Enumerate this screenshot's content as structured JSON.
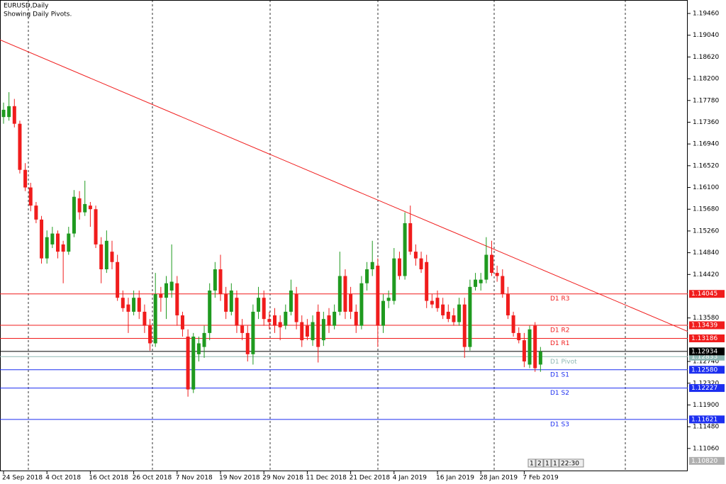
{
  "chart_data": {
    "type": "candlestick",
    "title": "EURUSD,Daily",
    "subtitle": "Showing Daily Pivots.",
    "categories": [
      "24 Sep 2018",
      null,
      null,
      null,
      null,
      null,
      null,
      null,
      "4 Oct 2018",
      null,
      null,
      null,
      null,
      null,
      null,
      null,
      "16 Oct 2018",
      null,
      null,
      null,
      null,
      null,
      null,
      null,
      "26 Oct 2018",
      null,
      null,
      null,
      null,
      null,
      null,
      null,
      "7 Nov 2018",
      null,
      null,
      null,
      null,
      null,
      null,
      null,
      "19 Nov 2018",
      null,
      null,
      null,
      null,
      null,
      null,
      null,
      "29 Nov 2018",
      null,
      null,
      null,
      null,
      null,
      null,
      null,
      "11 Dec 2018",
      null,
      null,
      null,
      null,
      null,
      null,
      null,
      "21 Dec 2018",
      null,
      null,
      null,
      null,
      null,
      null,
      null,
      "4 Jan 2019",
      null,
      null,
      null,
      null,
      null,
      null,
      null,
      "16 Jan 2019",
      null,
      null,
      null,
      null,
      null,
      null,
      null,
      "28 Jan 2019",
      null,
      null,
      null,
      null,
      null,
      null,
      null,
      "7 Feb 2019",
      null,
      null,
      null
    ],
    "open": [
      1.1746,
      1.1746,
      1.1767,
      1.1733,
      1.1644,
      1.161,
      1.1575,
      1.1548,
      1.1473,
      1.15,
      1.1521,
      1.15,
      1.1486,
      1.1521,
      1.1589,
      1.1562,
      1.1575,
      1.1568,
      1.15,
      1.1452,
      1.1486,
      1.1466,
      1.1397,
      1.1384,
      1.137,
      1.1397,
      1.137,
      1.1343,
      1.1309,
      1.1404,
      1.1397,
      1.1411,
      1.1425,
      1.1363,
      1.1322,
      1.122,
      1.1288,
      1.1302,
      1.1329,
      1.1411,
      1.1452,
      1.1404,
      1.137,
      1.1397,
      1.1343,
      1.1329,
      1.1288,
      1.137,
      1.1397,
      1.1356,
      1.1363,
      1.135,
      1.1343,
      1.137,
      1.1404,
      1.135,
      1.1343,
      1.1315,
      1.137,
      1.1315,
      1.1363,
      1.1343,
      1.137,
      1.1439,
      1.1404,
      1.137,
      1.1343,
      1.1425,
      1.1452,
      1.1459,
      1.1343,
      1.1391,
      1.1391,
      1.1473,
      1.1439,
      1.1541,
      1.1486,
      1.1473,
      1.1466,
      1.1391,
      1.1397,
      1.1384,
      1.137,
      1.1363,
      1.135,
      1.1384,
      1.1302,
      1.1418,
      1.1425,
      1.1432,
      1.148,
      1.1445,
      1.1439,
      1.1404,
      1.1363,
      1.1329,
      1.1315,
      1.1268,
      1.1343,
      1.1268
    ],
    "high": [
      1.1774,
      1.1794,
      1.1781,
      1.1739,
      1.1657,
      1.1619,
      1.1582,
      1.1555,
      1.1527,
      1.1534,
      1.1527,
      1.1507,
      1.1534,
      1.1605,
      1.1603,
      1.1623,
      1.1582,
      1.1575,
      1.1514,
      1.1527,
      1.1507,
      1.148,
      1.1411,
      1.1397,
      1.1411,
      1.1411,
      1.1384,
      1.1356,
      1.1445,
      1.1418,
      1.1439,
      1.15,
      1.1439,
      1.137,
      1.1336,
      1.1329,
      1.1322,
      1.1343,
      1.1425,
      1.1466,
      1.148,
      1.1418,
      1.1425,
      1.1411,
      1.1356,
      1.1343,
      1.1384,
      1.1418,
      1.1411,
      1.137,
      1.1377,
      1.1363,
      1.1384,
      1.1432,
      1.1418,
      1.1363,
      1.1356,
      1.1363,
      1.1384,
      1.137,
      1.1377,
      1.1384,
      1.1486,
      1.1452,
      1.1418,
      1.1384,
      1.1439,
      1.1466,
      1.1507,
      1.1473,
      1.1404,
      1.1411,
      1.1493,
      1.1486,
      1.1562,
      1.1575,
      1.15,
      1.1486,
      1.148,
      1.1404,
      1.1411,
      1.1397,
      1.1384,
      1.1377,
      1.1397,
      1.1397,
      1.1432,
      1.1445,
      1.1445,
      1.1514,
      1.1507,
      1.1459,
      1.1452,
      1.1418,
      1.137,
      1.134,
      1.1329,
      1.1343,
      1.135,
      1.1302
    ],
    "low": [
      1.1733,
      1.1739,
      1.1726,
      1.1637,
      1.1603,
      1.1564,
      1.1541,
      1.1463,
      1.1463,
      1.1493,
      1.1473,
      1.1425,
      1.148,
      1.1514,
      1.1548,
      1.1555,
      1.1534,
      1.1493,
      1.1425,
      1.1445,
      1.1452,
      1.1391,
      1.137,
      1.1329,
      1.1363,
      1.1356,
      1.1329,
      1.1295,
      1.1302,
      1.137,
      1.1356,
      1.1397,
      1.1343,
      1.1322,
      1.1206,
      1.1213,
      1.1274,
      1.1281,
      1.1315,
      1.1397,
      1.1391,
      1.1356,
      1.1363,
      1.1329,
      1.1315,
      1.1274,
      1.1268,
      1.1356,
      1.1343,
      1.1336,
      1.1329,
      1.1315,
      1.1336,
      1.1363,
      1.1336,
      1.1302,
      1.1315,
      1.1304,
      1.1272,
      1.1304,
      1.1329,
      1.1336,
      1.1363,
      1.1356,
      1.1356,
      1.1329,
      1.1336,
      1.1411,
      1.1439,
      1.1302,
      1.1329,
      1.1377,
      1.1384,
      1.1432,
      1.1432,
      1.148,
      1.1459,
      1.1445,
      1.1377,
      1.1377,
      1.137,
      1.1356,
      1.135,
      1.1343,
      1.1343,
      1.1281,
      1.1295,
      1.1411,
      1.1411,
      1.1425,
      1.1439,
      1.1428,
      1.1397,
      1.1356,
      1.1322,
      1.1309,
      1.1263,
      1.1261,
      1.1254,
      1.1254
    ],
    "close": [
      1.176,
      1.1767,
      1.1733,
      1.1644,
      1.161,
      1.1575,
      1.1548,
      1.1473,
      1.1514,
      1.1521,
      1.1486,
      1.1486,
      1.1521,
      1.1592,
      1.1562,
      1.1578,
      1.1568,
      1.15,
      1.1452,
      1.1507,
      1.1466,
      1.1397,
      1.1377,
      1.137,
      1.1397,
      1.137,
      1.1343,
      1.1309,
      1.1404,
      1.1397,
      1.1425,
      1.1428,
      1.1363,
      1.1336,
      1.122,
      1.1322,
      1.1309,
      1.1329,
      1.1411,
      1.1452,
      1.1404,
      1.137,
      1.1411,
      1.1343,
      1.1329,
      1.1288,
      1.137,
      1.1397,
      1.1356,
      1.135,
      1.1343,
      1.134,
      1.137,
      1.1411,
      1.135,
      1.1315,
      1.1322,
      1.135,
      1.1302,
      1.1356,
      1.1343,
      1.137,
      1.1439,
      1.137,
      1.137,
      1.1343,
      1.1425,
      1.1452,
      1.1466,
      1.1343,
      1.1391,
      1.1397,
      1.1473,
      1.1439,
      1.1541,
      1.1486,
      1.1473,
      1.1452,
      1.1391,
      1.1384,
      1.1377,
      1.1363,
      1.1356,
      1.135,
      1.1384,
      1.1302,
      1.1418,
      1.1432,
      1.1432,
      1.148,
      1.1445,
      1.1439,
      1.1404,
      1.1363,
      1.1329,
      1.1315,
      1.1274,
      1.1336,
      1.1261,
      1.1293
    ],
    "up_color": "#1f9a1f",
    "down_color": "#f01c1c",
    "ylim": [
      1.1062,
      1.1972
    ],
    "yticks": [
      {
        "value": 1.1946,
        "label": "1.19460"
      },
      {
        "value": 1.1904,
        "label": "1.19040"
      },
      {
        "value": 1.1862,
        "label": "1.18620"
      },
      {
        "value": 1.182,
        "label": "1.18200"
      },
      {
        "value": 1.1778,
        "label": "1.17780"
      },
      {
        "value": 1.1736,
        "label": "1.17360"
      },
      {
        "value": 1.1694,
        "label": "1.16940"
      },
      {
        "value": 1.1652,
        "label": "1.16520"
      },
      {
        "value": 1.161,
        "label": "1.16100"
      },
      {
        "value": 1.1568,
        "label": "1.15680"
      },
      {
        "value": 1.1526,
        "label": "1.15260"
      },
      {
        "value": 1.1484,
        "label": "1.14840"
      },
      {
        "value": 1.1442,
        "label": "1.14420"
      },
      {
        "value": 1.1358,
        "label": "1.13580"
      },
      {
        "value": 1.1274,
        "label": "1.12740"
      },
      {
        "value": 1.1232,
        "label": "1.12320"
      },
      {
        "value": 1.119,
        "label": "1.11900"
      },
      {
        "value": 1.1148,
        "label": "1.11480"
      },
      {
        "value": 1.1106,
        "label": "1.11060"
      }
    ],
    "trendline": {
      "values": [
        1.1895,
        1.1332
      ],
      "color": "#f01c1c"
    },
    "levels": [
      {
        "name": "D1 R3",
        "value": 1.14045,
        "color": "#f01c1c"
      },
      {
        "name": "D1 R2",
        "value": 1.13439,
        "color": "#f01c1c"
      },
      {
        "name": "D1 R1",
        "value": 1.13186,
        "color": "#f01c1c"
      },
      {
        "name": "D1 Pivot",
        "value": 1.12833,
        "color": "#8fb8b4"
      },
      {
        "name": "D1 S1",
        "value": 1.1258,
        "label": "1.12580",
        "color": "#1c2ef0"
      },
      {
        "name": "D1 S2",
        "value": 1.12227,
        "color": "#1c2ef0"
      },
      {
        "name": "D1 S3",
        "value": 1.11621,
        "color": "#1c2ef0"
      }
    ],
    "bid": {
      "value": 1.12934,
      "color": "#000000"
    },
    "last_label": {
      "value": 1.1082,
      "label": "1.10820",
      "color": "#b0b0b0"
    }
  },
  "status": [
    "1",
    "2",
    "1",
    "1",
    "22:30"
  ]
}
